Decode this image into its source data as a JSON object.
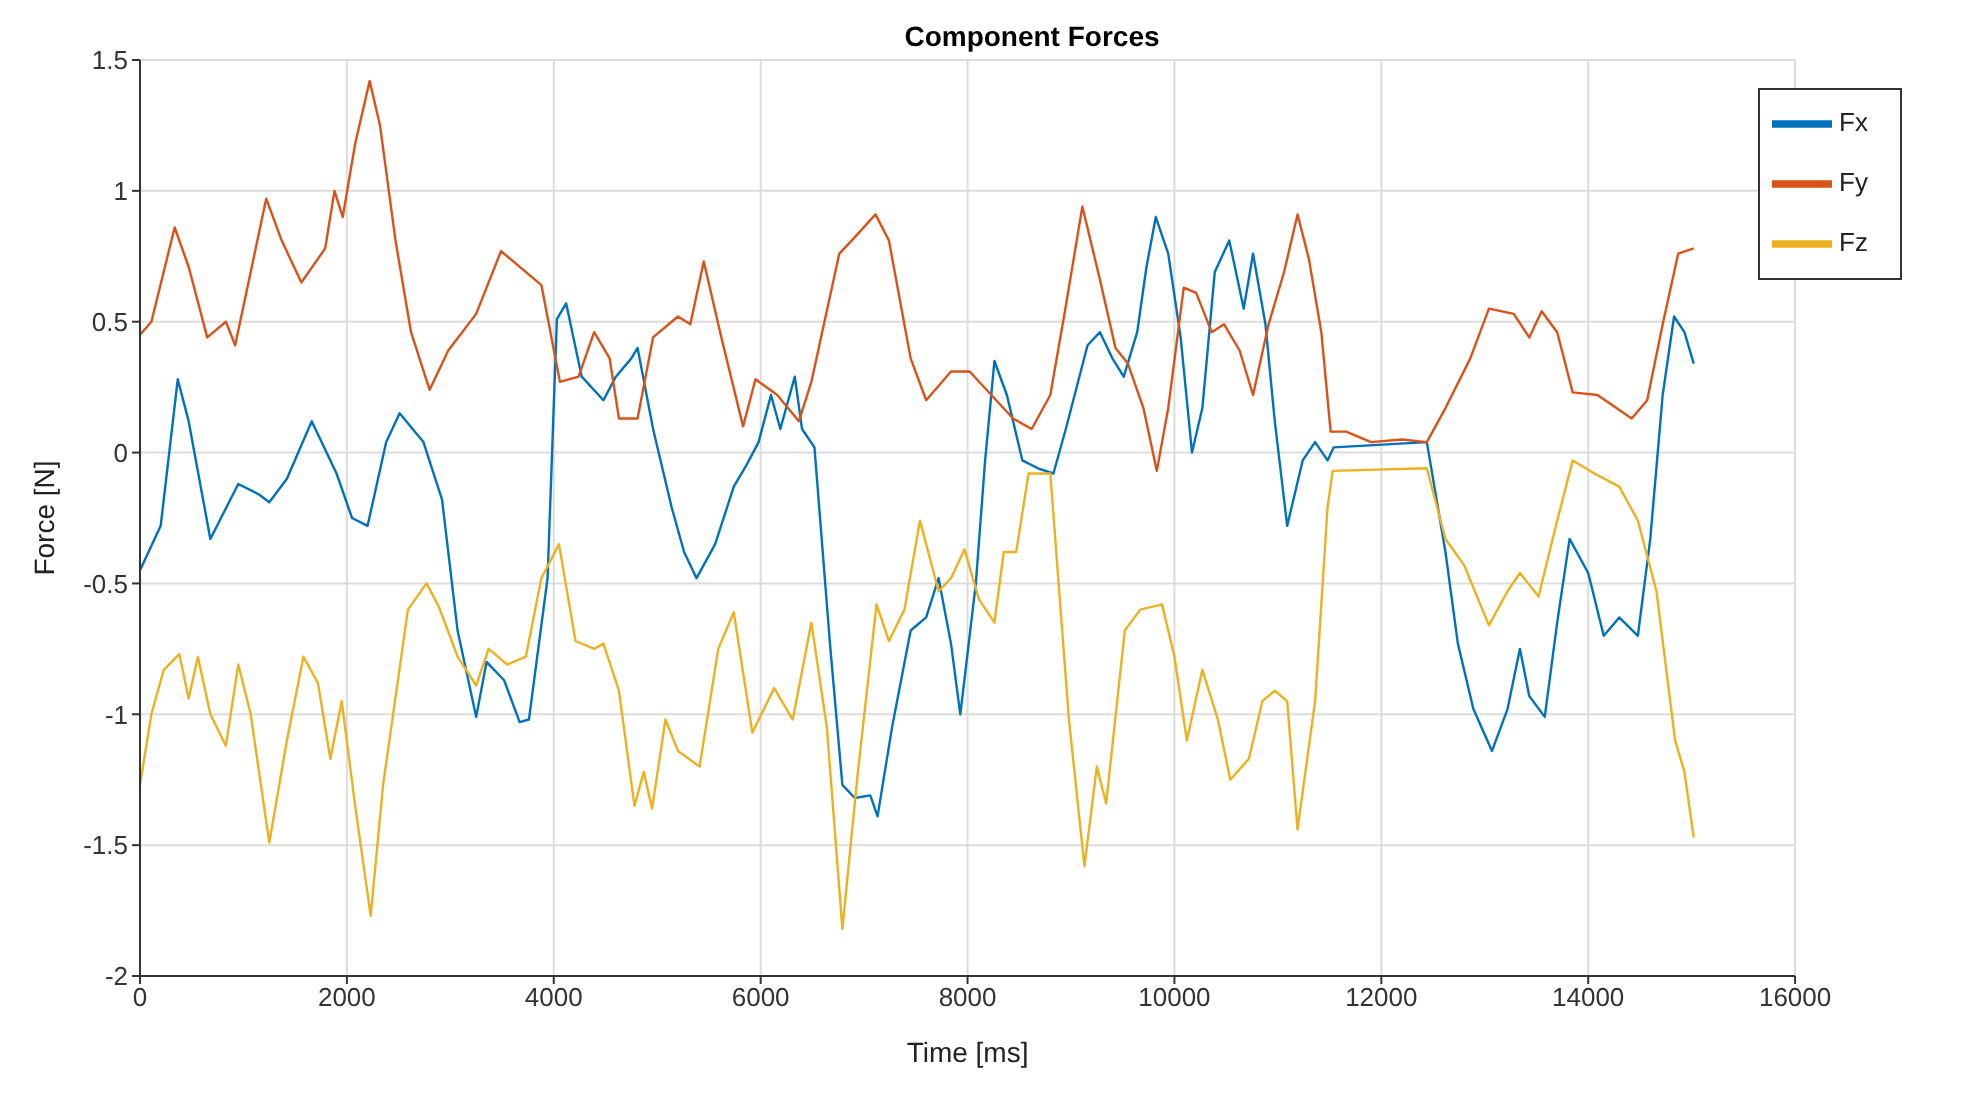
{
  "chart_data": {
    "type": "line",
    "title": "Component Forces",
    "xlabel": "Time [ms]",
    "ylabel": "Force [N]",
    "xlim": [
      0,
      16000
    ],
    "xticks": [
      0,
      2000,
      4000,
      6000,
      8000,
      10000,
      12000,
      14000,
      16000
    ],
    "ylim": [
      -2,
      1.5
    ],
    "yticks": [
      -2,
      -1.5,
      -1,
      -0.5,
      0,
      0.5,
      1,
      1.5
    ],
    "grid": true,
    "legend": "top right",
    "series": [
      {
        "name": "Fx",
        "color": "#0072bd",
        "x": [
          0,
          200,
          365,
          470,
          680,
          950,
          1150,
          1250,
          1420,
          1660,
          1900,
          2050,
          2200,
          2380,
          2510,
          2740,
          2920,
          3070,
          3250,
          3350,
          3520,
          3670,
          3760,
          3940,
          4030,
          4120,
          4270,
          4480,
          4600,
          4750,
          4810,
          4960,
          5140,
          5260,
          5380,
          5560,
          5740,
          5860,
          5980,
          6100,
          6190,
          6330,
          6400,
          6520,
          6670,
          6790,
          6910,
          7060,
          7130,
          7270,
          7450,
          7600,
          7720,
          7840,
          7930,
          8080,
          8170,
          8260,
          8380,
          8530,
          8680,
          8830,
          8950,
          9160,
          9280,
          9400,
          9510,
          9640,
          9730,
          9820,
          9940,
          10060,
          10170,
          10270,
          10390,
          10530,
          10670,
          10760,
          10880,
          10970,
          11090,
          11240,
          11360,
          11480,
          11540,
          12440,
          12620,
          12740,
          12890,
          13070,
          13220,
          13340,
          13430,
          13580,
          13700,
          13820,
          14000,
          14150,
          14300,
          14480,
          14600,
          14720,
          14830,
          14930,
          15020
        ],
        "values": [
          -0.45,
          -0.28,
          0.28,
          0.12,
          -0.33,
          -0.12,
          -0.16,
          -0.19,
          -0.1,
          0.12,
          -0.08,
          -0.25,
          -0.28,
          0.04,
          0.15,
          0.04,
          -0.18,
          -0.68,
          -1.01,
          -0.8,
          -0.87,
          -1.03,
          -1.02,
          -0.48,
          0.51,
          0.57,
          0.29,
          0.2,
          0.29,
          0.36,
          0.4,
          0.09,
          -0.21,
          -0.38,
          -0.48,
          -0.35,
          -0.13,
          -0.05,
          0.04,
          0.22,
          0.09,
          0.29,
          0.09,
          0.02,
          -0.73,
          -1.27,
          -1.32,
          -1.31,
          -1.39,
          -1.05,
          -0.68,
          -0.63,
          -0.48,
          -0.73,
          -1.0,
          -0.5,
          -0.03,
          0.35,
          0.22,
          -0.03,
          -0.06,
          -0.08,
          0.09,
          0.41,
          0.46,
          0.36,
          0.29,
          0.46,
          0.71,
          0.9,
          0.76,
          0.44,
          0.0,
          0.17,
          0.69,
          0.81,
          0.55,
          0.76,
          0.49,
          0.12,
          -0.28,
          -0.03,
          0.04,
          -0.03,
          0.02,
          0.04,
          -0.38,
          -0.73,
          -0.98,
          -1.14,
          -0.98,
          -0.75,
          -0.93,
          -1.01,
          -0.65,
          -0.33,
          -0.46,
          -0.7,
          -0.63,
          -0.7,
          -0.33,
          0.22,
          0.52,
          0.46,
          0.34
        ]
      },
      {
        "name": "Fy",
        "color": "#d95319",
        "x": [
          0,
          110,
          335,
          470,
          650,
          830,
          920,
          1220,
          1370,
          1560,
          1790,
          1880,
          1960,
          2080,
          2220,
          2320,
          2470,
          2620,
          2800,
          2980,
          3250,
          3490,
          3640,
          3880,
          4060,
          4240,
          4390,
          4540,
          4630,
          4810,
          4960,
          5200,
          5320,
          5450,
          5620,
          5830,
          5950,
          6160,
          6370,
          6490,
          6760,
          6880,
          7110,
          7240,
          7450,
          7600,
          7840,
          8020,
          8230,
          8440,
          8620,
          8800,
          8950,
          9110,
          9280,
          9430,
          9550,
          9700,
          9830,
          9940,
          10090,
          10210,
          10360,
          10480,
          10630,
          10760,
          10910,
          11060,
          11190,
          11300,
          11420,
          11510,
          11660,
          11900,
          12200,
          12440,
          12620,
          12860,
          13040,
          13280,
          13430,
          13550,
          13700,
          13850,
          14090,
          14420,
          14570,
          14720,
          14870,
          15020
        ],
        "values": [
          0.45,
          0.5,
          0.86,
          0.71,
          0.44,
          0.5,
          0.41,
          0.97,
          0.81,
          0.65,
          0.78,
          1.0,
          0.9,
          1.18,
          1.42,
          1.25,
          0.81,
          0.46,
          0.24,
          0.39,
          0.53,
          0.77,
          0.72,
          0.64,
          0.27,
          0.29,
          0.46,
          0.36,
          0.13,
          0.13,
          0.44,
          0.52,
          0.49,
          0.73,
          0.44,
          0.1,
          0.28,
          0.22,
          0.12,
          0.27,
          0.76,
          0.81,
          0.91,
          0.81,
          0.36,
          0.2,
          0.31,
          0.31,
          0.22,
          0.13,
          0.09,
          0.22,
          0.56,
          0.94,
          0.66,
          0.4,
          0.34,
          0.17,
          -0.07,
          0.17,
          0.63,
          0.61,
          0.46,
          0.49,
          0.39,
          0.22,
          0.49,
          0.69,
          0.91,
          0.74,
          0.46,
          0.08,
          0.08,
          0.04,
          0.05,
          0.04,
          0.17,
          0.36,
          0.55,
          0.53,
          0.44,
          0.54,
          0.46,
          0.23,
          0.22,
          0.13,
          0.2,
          0.49,
          0.76,
          0.78
        ]
      },
      {
        "name": "Fz",
        "color": "#edb120",
        "x": [
          0,
          110,
          230,
          380,
          470,
          560,
          680,
          830,
          950,
          1070,
          1250,
          1420,
          1580,
          1720,
          1840,
          1950,
          2080,
          2230,
          2350,
          2590,
          2770,
          2890,
          3070,
          3250,
          3370,
          3550,
          3730,
          3880,
          4050,
          4210,
          4390,
          4480,
          4630,
          4780,
          4870,
          4950,
          5080,
          5200,
          5410,
          5590,
          5740,
          5920,
          6130,
          6310,
          6490,
          6640,
          6790,
          6940,
          7120,
          7240,
          7390,
          7540,
          7720,
          7840,
          7970,
          8110,
          8260,
          8350,
          8470,
          8590,
          8800,
          8980,
          9130,
          9250,
          9340,
          9520,
          9670,
          9880,
          10000,
          10120,
          10270,
          10420,
          10540,
          10720,
          10850,
          10970,
          11090,
          11190,
          11360,
          11480,
          11530,
          12440,
          12620,
          12800,
          13040,
          13220,
          13340,
          13520,
          13700,
          13850,
          14060,
          14300,
          14480,
          14660,
          14840,
          14930,
          15020
        ],
        "values": [
          -1.27,
          -1.0,
          -0.83,
          -0.77,
          -0.94,
          -0.78,
          -1.0,
          -1.12,
          -0.81,
          -1.0,
          -1.49,
          -1.1,
          -0.78,
          -0.88,
          -1.17,
          -0.95,
          -1.35,
          -1.77,
          -1.27,
          -0.6,
          -0.5,
          -0.59,
          -0.78,
          -0.89,
          -0.75,
          -0.81,
          -0.78,
          -0.48,
          -0.35,
          -0.72,
          -0.75,
          -0.73,
          -0.91,
          -1.35,
          -1.22,
          -1.36,
          -1.02,
          -1.14,
          -1.2,
          -0.75,
          -0.61,
          -1.07,
          -0.9,
          -1.02,
          -0.65,
          -1.05,
          -1.82,
          -1.22,
          -0.58,
          -0.72,
          -0.6,
          -0.26,
          -0.53,
          -0.48,
          -0.37,
          -0.56,
          -0.65,
          -0.38,
          -0.38,
          -0.08,
          -0.08,
          -1.02,
          -1.58,
          -1.2,
          -1.34,
          -0.68,
          -0.6,
          -0.58,
          -0.78,
          -1.1,
          -0.83,
          -1.02,
          -1.25,
          -1.17,
          -0.95,
          -0.91,
          -0.95,
          -1.44,
          -0.95,
          -0.21,
          -0.07,
          -0.06,
          -0.33,
          -0.43,
          -0.66,
          -0.53,
          -0.46,
          -0.55,
          -0.26,
          -0.03,
          -0.08,
          -0.13,
          -0.26,
          -0.53,
          -1.1,
          -1.22,
          -1.47
        ]
      }
    ]
  }
}
